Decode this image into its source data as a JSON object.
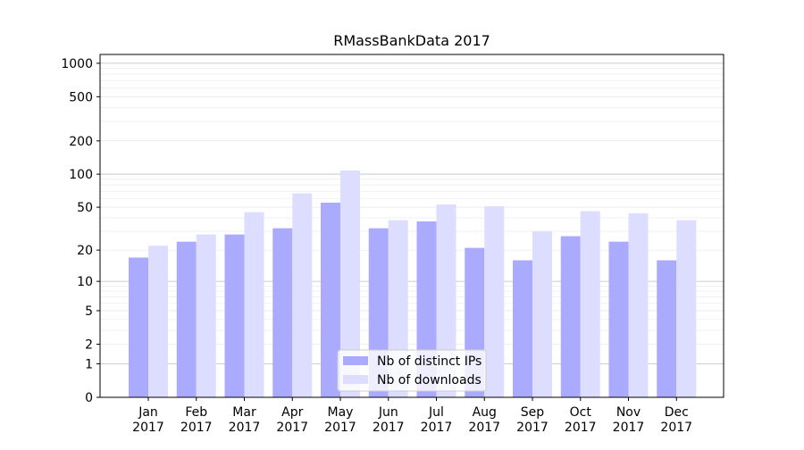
{
  "chart_data": {
    "type": "bar",
    "title": "RMassBankData 2017",
    "xlabel": "",
    "ylabel": "",
    "yscale": "log1p",
    "ylim": [
      0,
      1200
    ],
    "grid": true,
    "y_ticks": [
      "0",
      "1",
      "2",
      "5",
      "10",
      "20",
      "50",
      "100",
      "200",
      "500",
      "1000"
    ],
    "categories": [
      "Jan\n2017",
      "Feb\n2017",
      "Mar\n2017",
      "Apr\n2017",
      "May\n2017",
      "Jun\n2017",
      "Jul\n2017",
      "Aug\n2017",
      "Sep\n2017",
      "Oct\n2017",
      "Nov\n2017",
      "Dec\n2017"
    ],
    "series": [
      {
        "name": "Nb of distinct IPs",
        "color": "#aaaaff",
        "values": [
          17,
          24,
          28,
          32,
          55,
          32,
          37,
          21,
          16,
          27,
          24,
          16
        ]
      },
      {
        "name": "Nb of downloads",
        "color": "#ddddff",
        "values": [
          22,
          28,
          45,
          67,
          108,
          38,
          53,
          51,
          30,
          46,
          44,
          38
        ]
      }
    ],
    "legend": {
      "position": "lower-center"
    }
  }
}
